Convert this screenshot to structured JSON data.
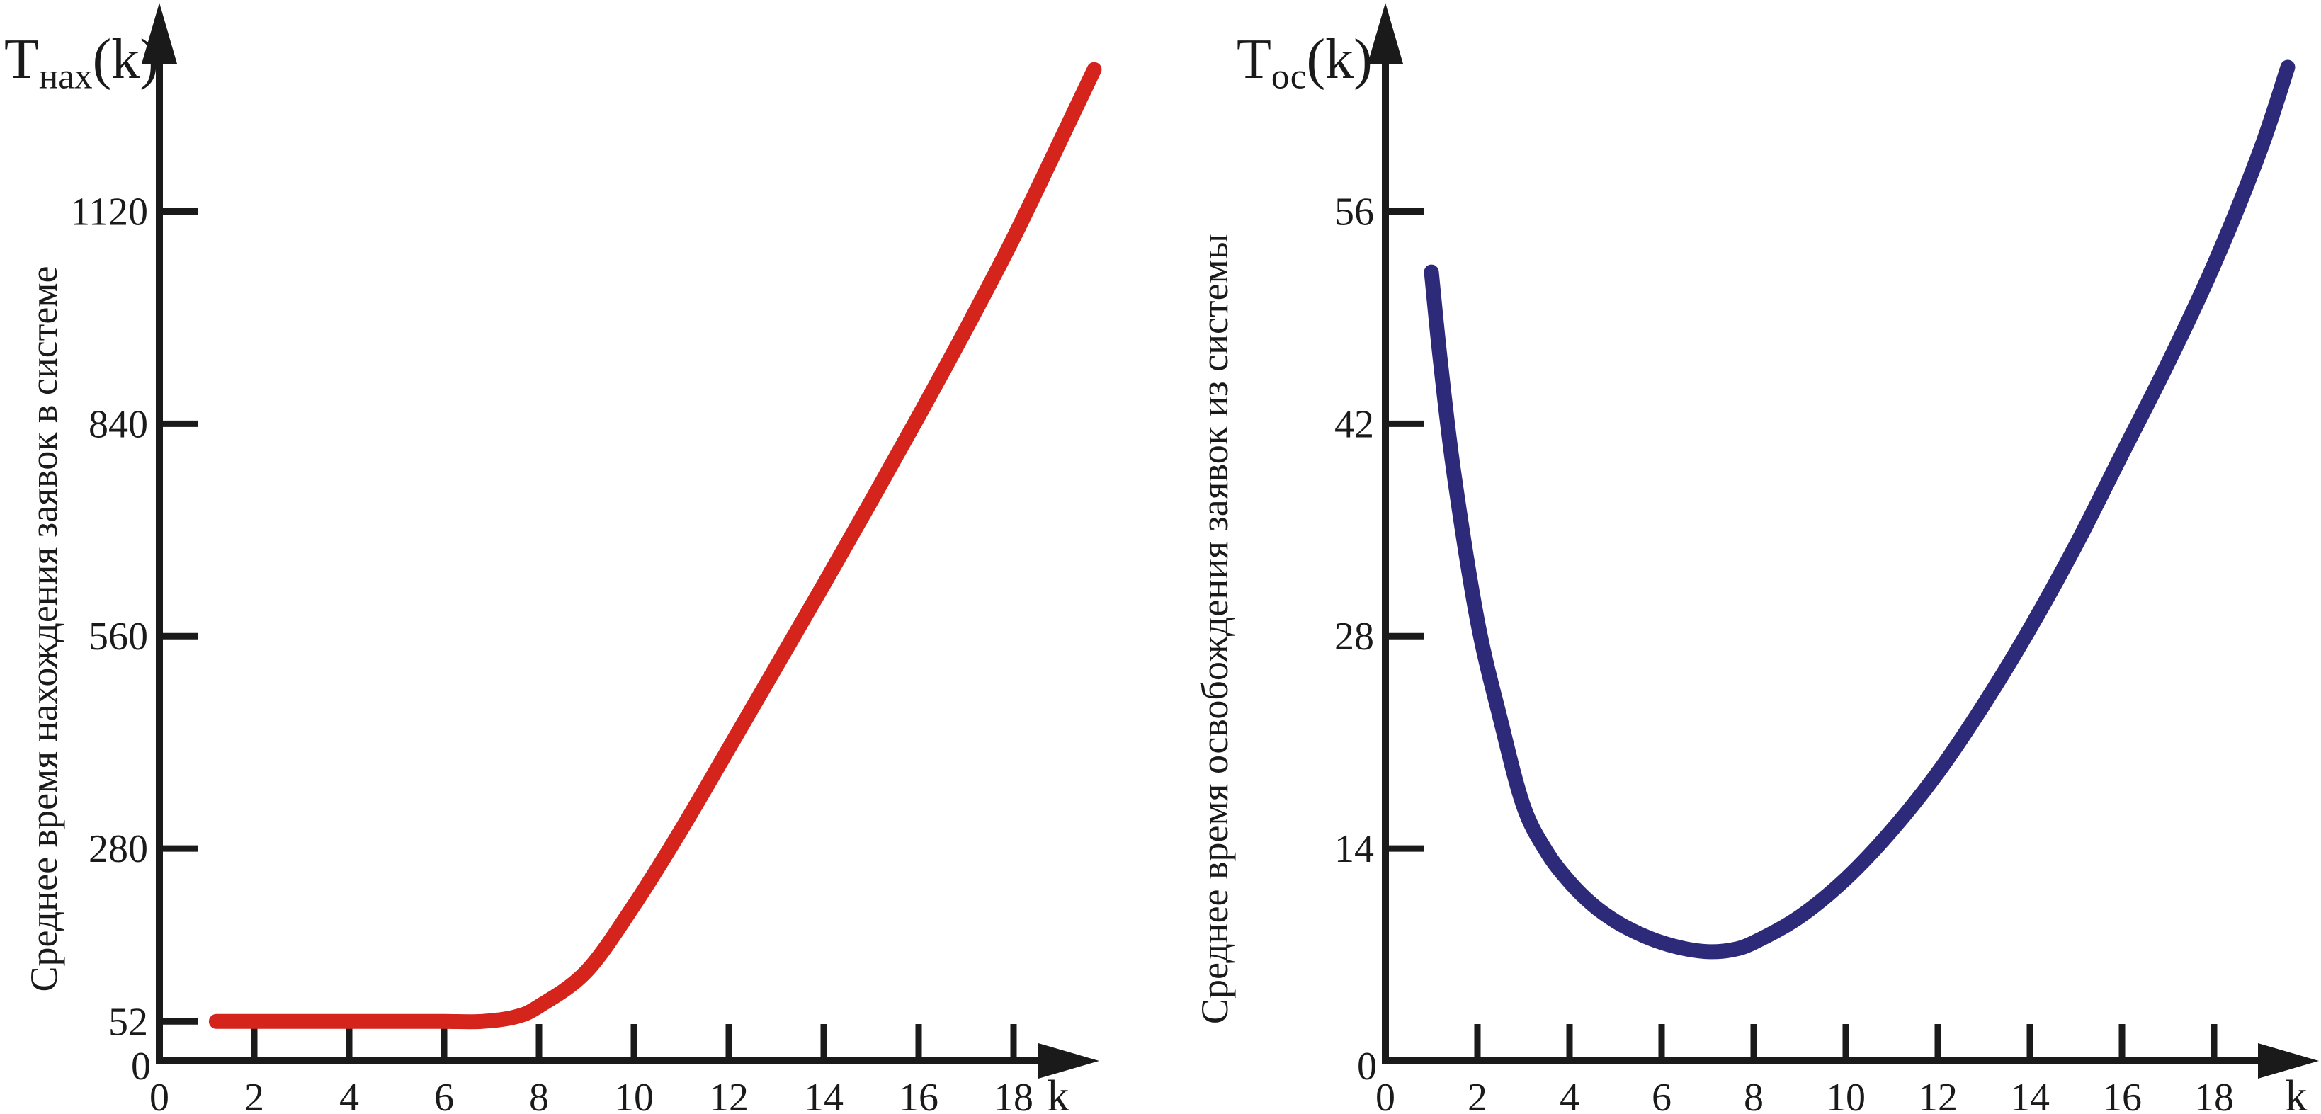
{
  "chart_data": [
    {
      "type": "line",
      "title": "Тнах(k)",
      "title_parts": {
        "base": "Т",
        "sub": "нах",
        "args": "(k)"
      },
      "ylabel": "Среднее время нахождения заявок в системе",
      "xlabel": "k",
      "x_tick_values": [
        2,
        4,
        6,
        8,
        10,
        12,
        14,
        16,
        18
      ],
      "x_tick_labels": [
        "2",
        "4",
        "6",
        "8",
        "10",
        "12",
        "14",
        "16",
        "18"
      ],
      "y_tick_values": [
        52,
        280,
        560,
        840,
        1120
      ],
      "y_tick_labels": [
        "52",
        "280",
        "560",
        "840",
        "1120"
      ],
      "origin_label_x": "0",
      "origin_label_y": "0",
      "xlim": [
        0,
        20
      ],
      "ylim": [
        0,
        1380
      ],
      "grid": false,
      "legend": null,
      "series": [
        {
          "name": "Тнах(k)",
          "color": "#d4241c",
          "x": [
            1.2,
            2,
            3,
            4,
            5,
            6,
            6.8,
            7.5,
            8,
            9,
            10,
            11,
            12,
            13,
            14,
            15,
            16,
            17,
            18,
            19,
            19.7
          ],
          "y": [
            52,
            52,
            52,
            52,
            52,
            52,
            52,
            58,
            72,
            118,
            205,
            305,
            412,
            520,
            628,
            738,
            850,
            965,
            1085,
            1215,
            1307
          ]
        }
      ]
    },
    {
      "type": "line",
      "title": "Тос(k)",
      "title_parts": {
        "base": "Т",
        "sub": "ос",
        "args": "(k)"
      },
      "ylabel": "Среднее время освобождения заявок из системы",
      "xlabel": "k",
      "x_tick_values": [
        2,
        4,
        6,
        8,
        10,
        12,
        14,
        16,
        18
      ],
      "x_tick_labels": [
        "2",
        "4",
        "6",
        "8",
        "10",
        "12",
        "14",
        "16",
        "18"
      ],
      "y_tick_values": [
        14,
        28,
        42,
        56
      ],
      "y_tick_labels": [
        "14",
        "28",
        "42",
        "56"
      ],
      "origin_label_x": "0",
      "origin_label_y": "0",
      "xlim": [
        0,
        20
      ],
      "ylim": [
        0,
        69
      ],
      "grid": false,
      "legend": null,
      "series": [
        {
          "name": "Тос(k)",
          "color": "#2e2a7a",
          "x": [
            1,
            1.2,
            1.5,
            2,
            2.5,
            3,
            3.5,
            4,
            4.5,
            5,
            5.5,
            6,
            6.5,
            7,
            7.5,
            8,
            9,
            10,
            11,
            12,
            13,
            14,
            15,
            16,
            17,
            18,
            19,
            19.6
          ],
          "y": [
            52,
            46,
            38.5,
            29,
            22.5,
            16.8,
            13.8,
            11.8,
            10.3,
            9.2,
            8.4,
            7.8,
            7.4,
            7.2,
            7.3,
            7.8,
            9.5,
            12,
            15.2,
            19,
            23.5,
            28.5,
            34,
            40,
            46,
            52.5,
            60,
            65.5
          ]
        }
      ]
    }
  ],
  "axis_color": "#1a1a1a"
}
